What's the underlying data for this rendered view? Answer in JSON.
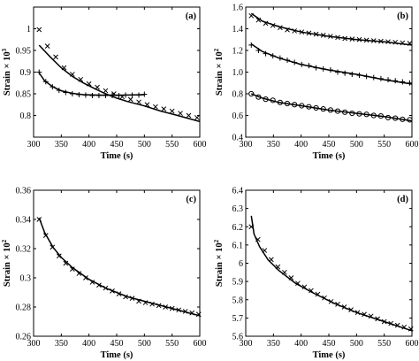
{
  "chart_data": [
    {
      "id": "a",
      "type": "scatter",
      "panel_label": "(a)",
      "xlabel": "Time (s)",
      "ylabel": "Strain × 10",
      "ylabel_exp": "3",
      "xlim": [
        300,
        600
      ],
      "ylim": [
        0.75,
        1.05
      ],
      "xticks": [
        300,
        350,
        400,
        450,
        500,
        550,
        600
      ],
      "yticks": [
        0.8,
        0.85,
        0.9,
        0.95,
        1.0
      ],
      "ytick_labels": [
        "0.8",
        "0.85",
        "0.9",
        "0.95",
        "1"
      ],
      "series": [
        {
          "marker": "x",
          "points": [
            [
              310,
              0.998
            ],
            [
              325,
              0.96
            ],
            [
              340,
              0.935
            ],
            [
              355,
              0.91
            ],
            [
              370,
              0.895
            ],
            [
              385,
              0.883
            ],
            [
              400,
              0.873
            ],
            [
              415,
              0.865
            ],
            [
              430,
              0.857
            ],
            [
              445,
              0.85
            ],
            [
              460,
              0.843
            ],
            [
              475,
              0.837
            ],
            [
              490,
              0.831
            ],
            [
              505,
              0.825
            ],
            [
              520,
              0.82
            ],
            [
              535,
              0.815
            ],
            [
              550,
              0.81
            ],
            [
              565,
              0.805
            ],
            [
              580,
              0.8
            ],
            [
              595,
              0.795
            ]
          ],
          "fit": [
            [
              310,
              0.962
            ],
            [
              330,
              0.935
            ],
            [
              350,
              0.91
            ],
            [
              370,
              0.89
            ],
            [
              390,
              0.875
            ],
            [
              410,
              0.862
            ],
            [
              430,
              0.85
            ],
            [
              450,
              0.84
            ],
            [
              470,
              0.832
            ],
            [
              500,
              0.822
            ],
            [
              530,
              0.81
            ],
            [
              560,
              0.8
            ],
            [
              600,
              0.786
            ]
          ]
        },
        {
          "marker": "+",
          "points": [
            [
              310,
              0.9
            ],
            [
              322,
              0.878
            ],
            [
              334,
              0.866
            ],
            [
              346,
              0.858
            ],
            [
              358,
              0.853
            ],
            [
              370,
              0.85
            ],
            [
              382,
              0.848
            ],
            [
              394,
              0.847
            ],
            [
              406,
              0.846
            ],
            [
              418,
              0.846
            ],
            [
              430,
              0.846
            ],
            [
              442,
              0.846
            ],
            [
              454,
              0.846
            ],
            [
              466,
              0.847
            ],
            [
              478,
              0.847
            ],
            [
              490,
              0.847
            ],
            [
              500,
              0.849
            ]
          ],
          "fit": [
            [
              310,
              0.898
            ],
            [
              320,
              0.88
            ],
            [
              335,
              0.866
            ],
            [
              350,
              0.857
            ],
            [
              370,
              0.851
            ],
            [
              390,
              0.848
            ],
            [
              420,
              0.847
            ],
            [
              460,
              0.847
            ],
            [
              500,
              0.848
            ]
          ]
        }
      ]
    },
    {
      "id": "b",
      "type": "scatter",
      "panel_label": "(b)",
      "xlabel": "Time (s)",
      "ylabel": "Strain × 10",
      "ylabel_exp": "2",
      "xlim": [
        300,
        600
      ],
      "ylim": [
        0.4,
        1.6
      ],
      "xticks": [
        300,
        350,
        400,
        450,
        500,
        550,
        600
      ],
      "yticks": [
        0.4,
        0.6,
        0.8,
        1.0,
        1.2,
        1.4,
        1.6
      ],
      "ytick_labels": [
        "0.4",
        "0.6",
        "0.8",
        "1.0",
        "1.2",
        "1.4",
        "1.6"
      ],
      "series": [
        {
          "marker": "x",
          "points": [
            [
              310,
              1.52
            ],
            [
              323,
              1.48
            ],
            [
              336,
              1.45
            ],
            [
              349,
              1.43
            ],
            [
              362,
              1.41
            ],
            [
              375,
              1.39
            ],
            [
              388,
              1.38
            ],
            [
              401,
              1.37
            ],
            [
              414,
              1.36
            ],
            [
              427,
              1.35
            ],
            [
              440,
              1.34
            ],
            [
              453,
              1.33
            ],
            [
              466,
              1.32
            ],
            [
              479,
              1.31
            ],
            [
              492,
              1.305
            ],
            [
              505,
              1.3
            ],
            [
              518,
              1.295
            ],
            [
              531,
              1.29
            ],
            [
              544,
              1.285
            ],
            [
              557,
              1.28
            ],
            [
              570,
              1.275
            ],
            [
              583,
              1.27
            ],
            [
              596,
              1.265
            ]
          ],
          "fit": [
            [
              310,
              1.54
            ],
            [
              330,
              1.47
            ],
            [
              360,
              1.42
            ],
            [
              400,
              1.37
            ],
            [
              450,
              1.33
            ],
            [
              500,
              1.3
            ],
            [
              550,
              1.28
            ],
            [
              600,
              1.25
            ]
          ]
        },
        {
          "marker": "+",
          "points": [
            [
              310,
              1.25
            ],
            [
              323,
              1.2
            ],
            [
              336,
              1.17
            ],
            [
              349,
              1.15
            ],
            [
              362,
              1.13
            ],
            [
              375,
              1.11
            ],
            [
              388,
              1.09
            ],
            [
              401,
              1.07
            ],
            [
              414,
              1.06
            ],
            [
              427,
              1.04
            ],
            [
              440,
              1.03
            ],
            [
              453,
              1.02
            ],
            [
              466,
              1.0
            ],
            [
              479,
              0.99
            ],
            [
              492,
              0.98
            ],
            [
              505,
              0.97
            ],
            [
              518,
              0.96
            ],
            [
              531,
              0.95
            ],
            [
              544,
              0.94
            ],
            [
              557,
              0.93
            ],
            [
              570,
              0.92
            ],
            [
              583,
              0.91
            ],
            [
              596,
              0.9
            ]
          ],
          "fit": [
            [
              310,
              1.26
            ],
            [
              330,
              1.19
            ],
            [
              360,
              1.13
            ],
            [
              400,
              1.07
            ],
            [
              450,
              1.02
            ],
            [
              500,
              0.98
            ],
            [
              550,
              0.93
            ],
            [
              600,
              0.89
            ]
          ]
        },
        {
          "marker": "o",
          "points": [
            [
              310,
              0.8
            ],
            [
              323,
              0.77
            ],
            [
              336,
              0.75
            ],
            [
              349,
              0.74
            ],
            [
              362,
              0.72
            ],
            [
              375,
              0.71
            ],
            [
              388,
              0.7
            ],
            [
              401,
              0.69
            ],
            [
              414,
              0.68
            ],
            [
              427,
              0.67
            ],
            [
              440,
              0.66
            ],
            [
              453,
              0.65
            ],
            [
              466,
              0.64
            ],
            [
              479,
              0.63
            ],
            [
              492,
              0.62
            ],
            [
              505,
              0.615
            ],
            [
              518,
              0.61
            ],
            [
              531,
              0.6
            ],
            [
              544,
              0.595
            ],
            [
              557,
              0.58
            ],
            [
              570,
              0.575
            ],
            [
              583,
              0.565
            ],
            [
              596,
              0.56
            ]
          ],
          "fit": [
            [
              310,
              0.8
            ],
            [
              330,
              0.76
            ],
            [
              360,
              0.72
            ],
            [
              400,
              0.69
            ],
            [
              450,
              0.65
            ],
            [
              500,
              0.62
            ],
            [
              550,
              0.59
            ],
            [
              600,
              0.55
            ]
          ]
        }
      ]
    },
    {
      "id": "c",
      "type": "scatter",
      "panel_label": "(c)",
      "xlabel": "Time (s)",
      "ylabel": "Strain × 10",
      "ylabel_exp": "2",
      "xlim": [
        300,
        600
      ],
      "ylim": [
        0.26,
        0.36
      ],
      "xticks": [
        300,
        350,
        400,
        450,
        500,
        550,
        600
      ],
      "yticks": [
        0.26,
        0.28,
        0.3,
        0.32,
        0.34,
        0.36
      ],
      "ytick_labels": [
        "0.26",
        "0.28",
        "0.3",
        "0.32",
        "0.34",
        "0.36"
      ],
      "series": [
        {
          "marker": "x",
          "points": [
            [
              310,
              0.34
            ],
            [
              322,
              0.329
            ],
            [
              334,
              0.321
            ],
            [
              346,
              0.315
            ],
            [
              358,
              0.31
            ],
            [
              370,
              0.306
            ],
            [
              382,
              0.303
            ],
            [
              394,
              0.3
            ],
            [
              406,
              0.297
            ],
            [
              418,
              0.295
            ],
            [
              430,
              0.293
            ],
            [
              442,
              0.291
            ],
            [
              454,
              0.289
            ],
            [
              466,
              0.287
            ],
            [
              478,
              0.286
            ],
            [
              490,
              0.284
            ],
            [
              502,
              0.283
            ],
            [
              514,
              0.282
            ],
            [
              526,
              0.281
            ],
            [
              538,
              0.28
            ],
            [
              550,
              0.279
            ],
            [
              562,
              0.278
            ],
            [
              574,
              0.277
            ],
            [
              586,
              0.276
            ],
            [
              598,
              0.275
            ]
          ],
          "fit": [
            [
              310,
              0.341
            ],
            [
              320,
              0.331
            ],
            [
              335,
              0.321
            ],
            [
              350,
              0.314
            ],
            [
              370,
              0.307
            ],
            [
              400,
              0.299
            ],
            [
              430,
              0.293
            ],
            [
              470,
              0.287
            ],
            [
              510,
              0.283
            ],
            [
              550,
              0.279
            ],
            [
              600,
              0.274
            ]
          ]
        }
      ]
    },
    {
      "id": "d",
      "type": "scatter",
      "panel_label": "(d)",
      "xlabel": "Time (s)",
      "ylabel": "Strain × 10",
      "ylabel_exp": "2",
      "xlim": [
        300,
        600
      ],
      "ylim": [
        5.6,
        6.4
      ],
      "xticks": [
        300,
        350,
        400,
        450,
        500,
        550,
        600
      ],
      "yticks": [
        5.6,
        5.7,
        5.8,
        5.9,
        6.0,
        6.1,
        6.2,
        6.3,
        6.4
      ],
      "ytick_labels": [
        "5.6",
        "5.7",
        "5.8",
        "5.9",
        "6",
        "6.1",
        "6.2",
        "6.3",
        "6.4"
      ],
      "series": [
        {
          "marker": "x",
          "points": [
            [
              310,
              6.2
            ],
            [
              322,
              6.13
            ],
            [
              334,
              6.07
            ],
            [
              346,
              6.02
            ],
            [
              358,
              5.98
            ],
            [
              370,
              5.95
            ],
            [
              382,
              5.92
            ],
            [
              394,
              5.89
            ],
            [
              406,
              5.87
            ],
            [
              418,
              5.85
            ],
            [
              430,
              5.83
            ],
            [
              442,
              5.81
            ],
            [
              454,
              5.79
            ],
            [
              466,
              5.775
            ],
            [
              478,
              5.76
            ],
            [
              490,
              5.745
            ],
            [
              502,
              5.73
            ],
            [
              514,
              5.72
            ],
            [
              526,
              5.71
            ],
            [
              538,
              5.695
            ],
            [
              550,
              5.68
            ],
            [
              562,
              5.67
            ],
            [
              574,
              5.66
            ],
            [
              586,
              5.65
            ],
            [
              598,
              5.64
            ]
          ],
          "fit": [
            [
              310,
              6.26
            ],
            [
              315,
              6.16
            ],
            [
              325,
              6.09
            ],
            [
              340,
              6.02
            ],
            [
              360,
              5.96
            ],
            [
              390,
              5.89
            ],
            [
              420,
              5.84
            ],
            [
              460,
              5.78
            ],
            [
              500,
              5.73
            ],
            [
              550,
              5.68
            ],
            [
              600,
              5.63
            ]
          ]
        }
      ]
    }
  ]
}
